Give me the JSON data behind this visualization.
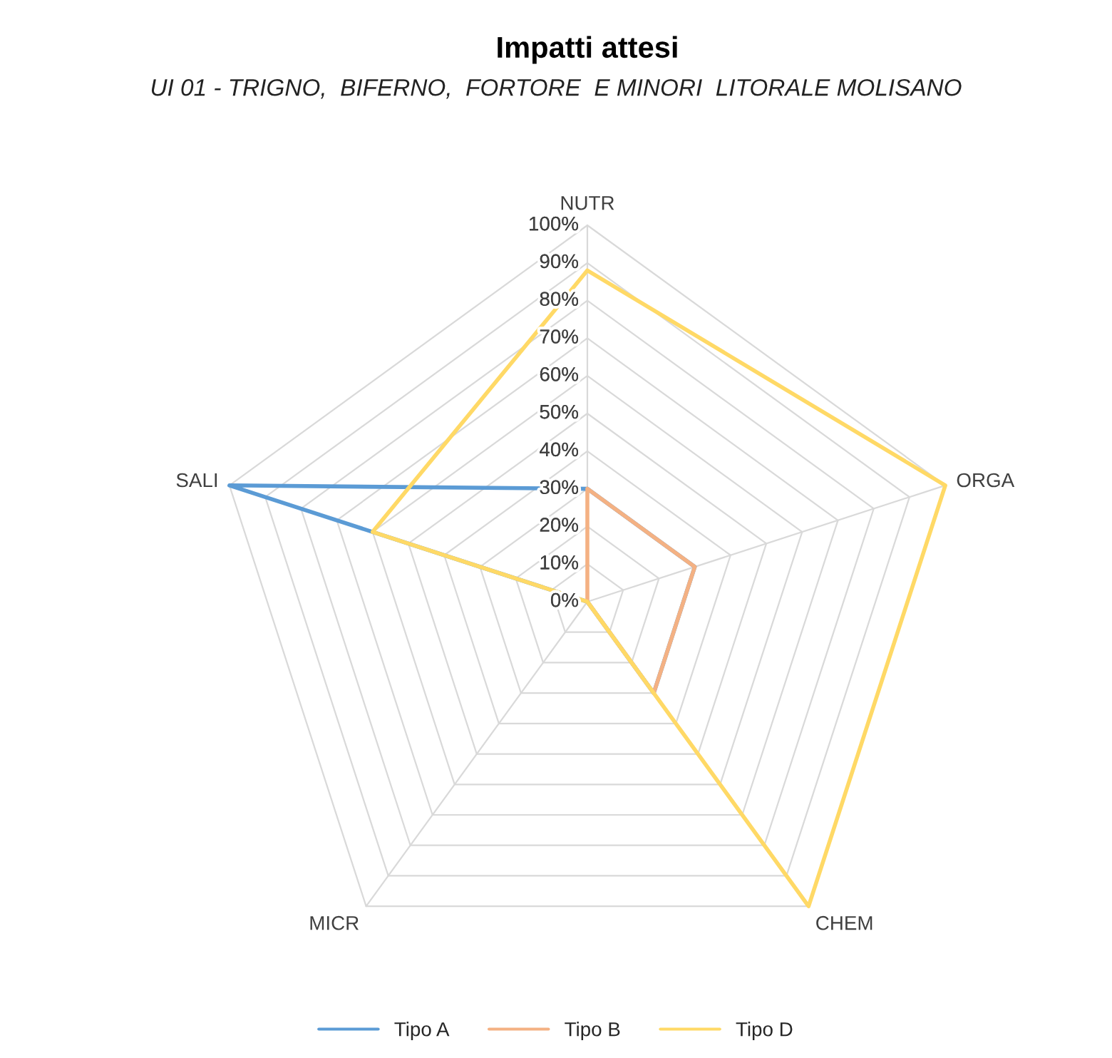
{
  "chart_data": {
    "type": "radar",
    "title": "Impatti attesi",
    "subtitle": "UI 01 - TRIGNO,  BIFERNO,  FORTORE  E MINORI  LITORALE MOLISANO",
    "categories": [
      "NUTR",
      "ORGA",
      "CHEM",
      "MICR",
      "SALI"
    ],
    "series": [
      {
        "name": "Tipo A",
        "color": "#5b9bd5",
        "values": [
          30,
          30,
          30,
          0,
          100
        ]
      },
      {
        "name": "Tipo B",
        "color": "#f4b183",
        "values": [
          30,
          30,
          30,
          0,
          0
        ]
      },
      {
        "name": "Tipo D",
        "color": "#ffd966",
        "values": [
          88,
          100,
          100,
          0,
          60
        ]
      }
    ],
    "ylim": [
      0,
      100
    ],
    "yticks": [
      {
        "value": 0,
        "label": "0%"
      },
      {
        "value": 10,
        "label": "10%"
      },
      {
        "value": 20,
        "label": "20%"
      },
      {
        "value": 30,
        "label": "30%"
      },
      {
        "value": 40,
        "label": "40%"
      },
      {
        "value": 50,
        "label": "50%"
      },
      {
        "value": 60,
        "label": "60%"
      },
      {
        "value": 70,
        "label": "70%"
      },
      {
        "value": 80,
        "label": "80%"
      },
      {
        "value": 90,
        "label": "90%"
      },
      {
        "value": 100,
        "label": "100%"
      }
    ],
    "grid": true,
    "legend": "bottom"
  }
}
